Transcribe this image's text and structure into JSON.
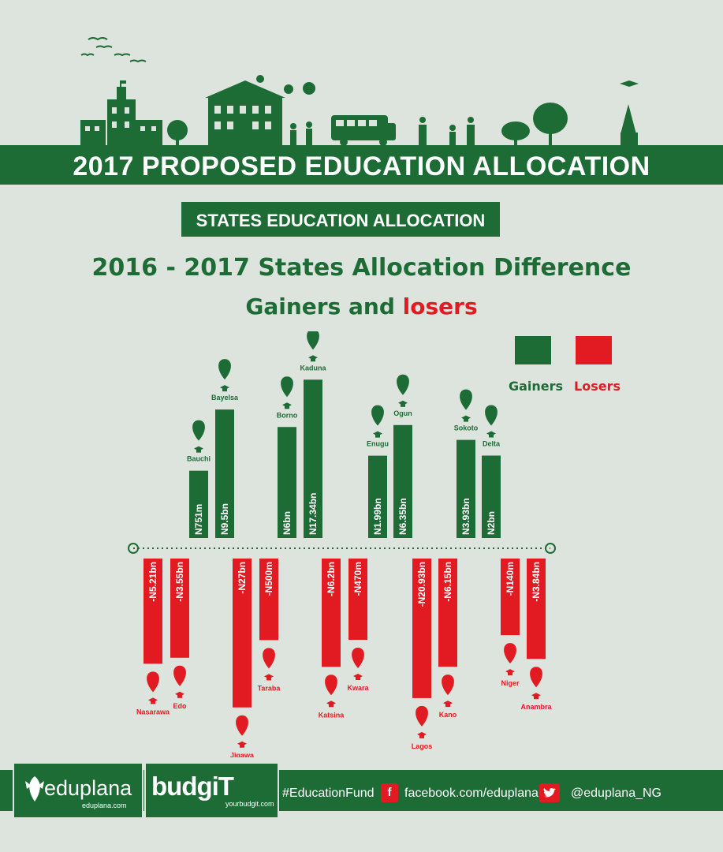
{
  "header": {
    "title": "2017 PROPOSED EDUCATION  ALLOCATION",
    "section": "STATES EDUCATION ALLOCATION",
    "heading": "2016 - 2017 States Allocation Difference",
    "subheading_gainers": "Gainers and ",
    "subheading_losers": "losers"
  },
  "legend": {
    "gainers": "Gainers",
    "losers": "Losers"
  },
  "colors": {
    "gainers": "#1d6b35",
    "losers": "#e21b23",
    "background": "#dde4dd"
  },
  "chart_data": {
    "type": "bar",
    "title": "2016 - 2017 States Allocation Difference",
    "series": [
      {
        "name": "Gainers",
        "values": [
          {
            "state": "Bauchi",
            "label": "N751m",
            "value": 0.751
          },
          {
            "state": "Bayelsa",
            "label": "N9.5bn",
            "value": 9.5
          },
          {
            "state": "Borno",
            "label": "N6bn",
            "value": 6
          },
          {
            "state": "Kaduna",
            "label": "N17.34bn",
            "value": 17.34
          },
          {
            "state": "Enugu",
            "label": "N1.99bn",
            "value": 1.99
          },
          {
            "state": "Ogun",
            "label": "N6.35bn",
            "value": 6.35
          },
          {
            "state": "Sokoto",
            "label": "N3.93bn",
            "value": 3.93
          },
          {
            "state": "Delta",
            "label": "N2bn",
            "value": 2
          }
        ]
      },
      {
        "name": "Losers",
        "values": [
          {
            "state": "Nasarawa",
            "label": "-N5.21bn",
            "value": -5.21
          },
          {
            "state": "Edo",
            "label": "-N3.55bn",
            "value": -3.55
          },
          {
            "state": "Jigawa",
            "label": "-N27bn",
            "value": -27
          },
          {
            "state": "Taraba",
            "label": "-N500m",
            "value": -0.5
          },
          {
            "state": "Katsina",
            "label": "-N6.2bn",
            "value": -6.2
          },
          {
            "state": "Kwara",
            "label": "-N470m",
            "value": -0.47
          },
          {
            "state": "Lagos",
            "label": "-N20.93bn",
            "value": -20.93
          },
          {
            "state": "Kano",
            "label": "-N6.15bn",
            "value": -6.15
          },
          {
            "state": "Niger",
            "label": "-N140m",
            "value": -0.14
          },
          {
            "state": "Anambra",
            "label": "-N3.84bn",
            "value": -3.84
          }
        ]
      }
    ]
  },
  "footer": {
    "eduplana_name": "eduplana",
    "eduplana_url": "eduplana.com",
    "budgit_name": "budgiT",
    "budgit_url": "yourbudgit.com",
    "hashtag": "#EducationFund",
    "facebook": "facebook.com/eduplana",
    "twitter": "@eduplana_NG"
  }
}
